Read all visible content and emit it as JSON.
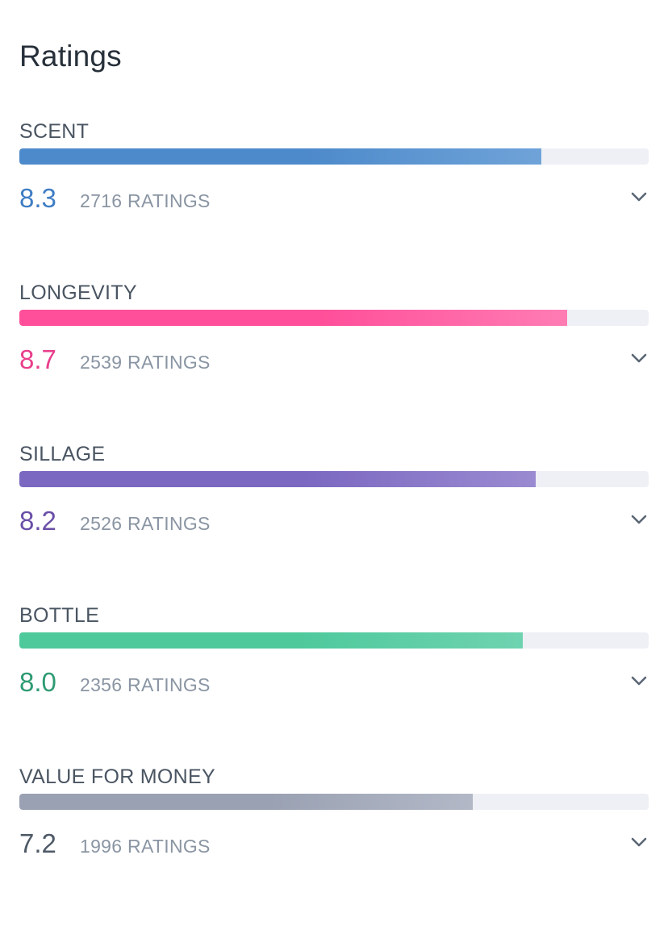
{
  "title": "Ratings",
  "ratings": [
    {
      "label": "SCENT",
      "score": "8.3",
      "count": "2716 RATINGS",
      "level": 0.83,
      "color": "#3f7dc4",
      "bar_start": "#4d8acb",
      "bar_end": "#6fa3d8"
    },
    {
      "label": "LONGEVITY",
      "score": "8.7",
      "count": "2539 RATINGS",
      "level": 0.87,
      "color": "#e83e8c",
      "bar_start": "#ff4f9a",
      "bar_end": "#ff7cb3"
    },
    {
      "label": "SILLAGE",
      "score": "8.2",
      "count": "2526 RATINGS",
      "level": 0.82,
      "color": "#6a4fa8",
      "bar_start": "#7b68c1",
      "bar_end": "#9a8ad1"
    },
    {
      "label": "BOTTLE",
      "score": "8.0",
      "count": "2356 RATINGS",
      "level": 0.8,
      "color": "#2f9b73",
      "bar_start": "#4ec99c",
      "bar_end": "#6fd3b0"
    },
    {
      "label": "VALUE FOR MONEY",
      "score": "7.2",
      "count": "1996 RATINGS",
      "level": 0.72,
      "color": "#4e5966",
      "bar_start": "#9aa1b2",
      "bar_end": "#b2b8c6"
    }
  ],
  "icons": {
    "expand": "chevron-down-icon"
  }
}
